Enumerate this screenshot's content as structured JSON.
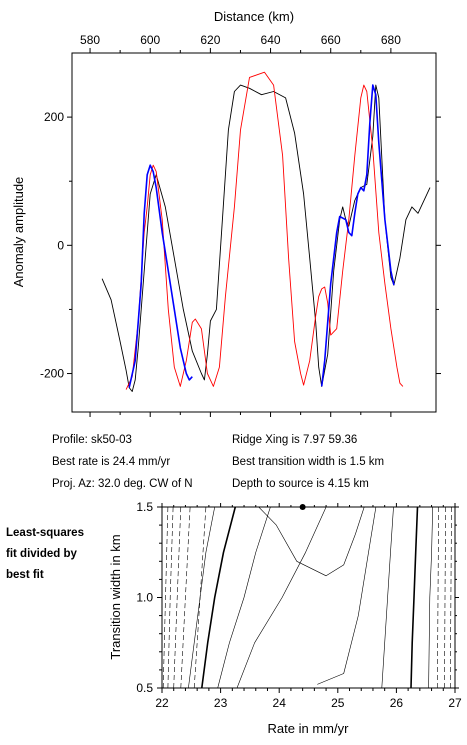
{
  "chart_data": [
    {
      "type": "line",
      "xlabel": "Distance (km)",
      "ylabel": "Anomaly amplitude",
      "xlim": [
        574,
        695
      ],
      "ylim": [
        -260,
        300
      ],
      "xticks": [
        580,
        600,
        620,
        640,
        660,
        680
      ],
      "yticks": [
        -200,
        0,
        200
      ],
      "x_axis_position": "top",
      "grid": false,
      "colors": {
        "observed": "#000000",
        "model": "#ff0000",
        "fit": "#0000ff"
      },
      "series": [
        {
          "key": "observed",
          "color": "#000000",
          "points": [
            [
              584,
              -52
            ],
            [
              587,
              -85
            ],
            [
              590,
              -150
            ],
            [
              592,
              -195
            ],
            [
              593,
              -222
            ],
            [
              594,
              -228
            ],
            [
              595,
              -210
            ],
            [
              596,
              -160
            ],
            [
              598,
              -40
            ],
            [
              600,
              80
            ],
            [
              602,
              110
            ],
            [
              605,
              60
            ],
            [
              608,
              -20
            ],
            [
              611,
              -100
            ],
            [
              614,
              -165
            ],
            [
              617,
              -200
            ],
            [
              618,
              -210
            ],
            [
              619,
              -170
            ],
            [
              620,
              -118
            ],
            [
              622,
              -100
            ],
            [
              624,
              40
            ],
            [
              626,
              180
            ],
            [
              628,
              240
            ],
            [
              630,
              250
            ],
            [
              633,
              245
            ],
            [
              637,
              235
            ],
            [
              641,
              240
            ],
            [
              645,
              230
            ],
            [
              648,
              175
            ],
            [
              651,
              80
            ],
            [
              653,
              -20
            ],
            [
              655,
              -120
            ],
            [
              656,
              -190
            ],
            [
              657,
              -220
            ],
            [
              659,
              -170
            ],
            [
              661,
              -40
            ],
            [
              663,
              40
            ],
            [
              664,
              60
            ],
            [
              665,
              40
            ],
            [
              666,
              30
            ],
            [
              668,
              70
            ],
            [
              670,
              90
            ],
            [
              672,
              95
            ],
            [
              674,
              170
            ],
            [
              675,
              250
            ],
            [
              676,
              230
            ],
            [
              678,
              40
            ],
            [
              680,
              -50
            ],
            [
              681,
              -62
            ],
            [
              683,
              -20
            ],
            [
              685,
              40
            ],
            [
              687,
              60
            ],
            [
              689,
              50
            ],
            [
              691,
              70
            ],
            [
              693,
              90
            ]
          ]
        },
        {
          "key": "model",
          "color": "#ff0000",
          "points": [
            [
              592,
              -225
            ],
            [
              594,
              -205
            ],
            [
              596,
              -120
            ],
            [
              598,
              20
            ],
            [
              599,
              60
            ],
            [
              600,
              110
            ],
            [
              601,
              125
            ],
            [
              602,
              115
            ],
            [
              604,
              40
            ],
            [
              606,
              -100
            ],
            [
              608,
              -190
            ],
            [
              610,
              -220
            ],
            [
              612,
              -180
            ],
            [
              614,
              -120
            ],
            [
              615,
              -115
            ],
            [
              617,
              -130
            ],
            [
              619,
              -200
            ],
            [
              621,
              -220
            ],
            [
              623,
              -190
            ],
            [
              625,
              -80
            ],
            [
              628,
              60
            ],
            [
              630,
              180
            ],
            [
              633,
              262
            ],
            [
              638,
              270
            ],
            [
              641,
              250
            ],
            [
              644,
              140
            ],
            [
              646,
              -20
            ],
            [
              648,
              -150
            ],
            [
              650,
              -200
            ],
            [
              651,
              -218
            ],
            [
              653,
              -180
            ],
            [
              655,
              -110
            ],
            [
              656,
              -80
            ],
            [
              657,
              -68
            ],
            [
              658,
              -65
            ],
            [
              659,
              -90
            ],
            [
              660,
              -140
            ],
            [
              662,
              -130
            ],
            [
              664,
              -40
            ],
            [
              666,
              40
            ],
            [
              668,
              140
            ],
            [
              670,
              230
            ],
            [
              671,
              250
            ],
            [
              672,
              240
            ],
            [
              674,
              150
            ],
            [
              676,
              20
            ],
            [
              678,
              -60
            ],
            [
              680,
              -130
            ],
            [
              682,
              -190
            ],
            [
              683,
              -215
            ],
            [
              684,
              -220
            ]
          ]
        },
        {
          "key": "fit",
          "color": "#0000ff",
          "points": [
            [
              593,
              -222
            ],
            [
              595,
              -180
            ],
            [
              597,
              -60
            ],
            [
              598,
              50
            ],
            [
              599,
              110
            ],
            [
              600,
              125
            ],
            [
              601,
              115
            ],
            [
              602,
              90
            ],
            [
              604,
              20
            ],
            [
              606,
              -40
            ],
            [
              608,
              -100
            ],
            [
              610,
              -160
            ],
            [
              612,
              -200
            ],
            [
              613,
              -210
            ],
            [
              614,
              -205
            ],
            [
              657,
              -220
            ],
            [
              658,
              -180
            ],
            [
              660,
              -60
            ],
            [
              662,
              20
            ],
            [
              663,
              45
            ],
            [
              665,
              40
            ],
            [
              666,
              20
            ],
            [
              667,
              15
            ],
            [
              668,
              50
            ],
            [
              669,
              80
            ],
            [
              670,
              90
            ],
            [
              671,
              85
            ],
            [
              672,
              110
            ],
            [
              673,
              190
            ],
            [
              674,
              250
            ],
            [
              675,
              235
            ],
            [
              676,
              160
            ],
            [
              678,
              40
            ],
            [
              680,
              -40
            ],
            [
              681,
              -62
            ]
          ]
        }
      ]
    },
    {
      "type": "contour",
      "xlabel": "Rate in mm/yr",
      "ylabel": "Transition width in km",
      "xlim": [
        22,
        27
      ],
      "ylim": [
        0.5,
        1.5
      ],
      "xticks": [
        22,
        23,
        24,
        25,
        26,
        27
      ],
      "yticks": [
        0.5,
        1.0,
        1.5
      ],
      "xtick_labels": [
        "22",
        "23",
        "24",
        "25",
        "26",
        "27"
      ],
      "ytick_labels": [
        "0.5",
        "1.0",
        "1.5"
      ],
      "best_fit": {
        "rate": 24.4,
        "width": 1.5
      },
      "contours": [
        {
          "style": "solid",
          "points": [
            [
              23.28,
              0.5
            ],
            [
              23.58,
              0.75
            ],
            [
              24.05,
              1.0
            ],
            [
              24.45,
              1.25
            ],
            [
              24.8,
              1.5
            ]
          ]
        },
        {
          "style": "solid",
          "points": [
            [
              24.65,
              0.52
            ],
            [
              25.1,
              0.58
            ],
            [
              25.35,
              0.9
            ],
            [
              25.55,
              1.3
            ],
            [
              25.65,
              1.5
            ]
          ]
        },
        {
          "style": "solid",
          "points": [
            [
              23.65,
              1.5
            ],
            [
              23.95,
              1.4
            ],
            [
              24.3,
              1.2
            ],
            [
              24.8,
              1.12
            ],
            [
              25.1,
              1.18
            ],
            [
              25.3,
              1.35
            ],
            [
              25.45,
              1.5
            ]
          ]
        },
        {
          "style": "solid",
          "points": [
            [
              22.95,
              0.5
            ],
            [
              23.15,
              0.75
            ],
            [
              23.4,
              1.0
            ],
            [
              23.6,
              1.25
            ],
            [
              23.85,
              1.5
            ]
          ]
        },
        {
          "style": "solid",
          "points": [
            [
              25.75,
              0.5
            ],
            [
              25.8,
              0.75
            ],
            [
              25.85,
              1.0
            ],
            [
              25.9,
              1.25
            ],
            [
              25.95,
              1.5
            ]
          ]
        },
        {
          "style": "bold",
          "points": [
            [
              22.68,
              0.5
            ],
            [
              22.78,
              0.75
            ],
            [
              22.9,
              1.0
            ],
            [
              23.05,
              1.25
            ],
            [
              23.25,
              1.5
            ]
          ]
        },
        {
          "style": "bold",
          "points": [
            [
              26.25,
              0.5
            ],
            [
              26.27,
              0.75
            ],
            [
              26.3,
              1.0
            ],
            [
              26.33,
              1.25
            ],
            [
              26.36,
              1.5
            ]
          ]
        },
        {
          "style": "solid",
          "points": [
            [
              22.45,
              0.5
            ],
            [
              22.55,
              0.75
            ],
            [
              22.65,
              1.0
            ],
            [
              22.75,
              1.25
            ],
            [
              22.9,
              1.5
            ]
          ]
        },
        {
          "style": "solid",
          "points": [
            [
              26.55,
              0.5
            ],
            [
              26.56,
              0.75
            ],
            [
              26.57,
              1.0
            ],
            [
              26.6,
              1.25
            ],
            [
              26.62,
              1.5
            ]
          ]
        },
        {
          "style": "dashed",
          "points": [
            [
              22.02,
              0.5
            ],
            [
              22.06,
              1.0
            ],
            [
              22.1,
              1.5
            ]
          ]
        },
        {
          "style": "dashed",
          "points": [
            [
              22.1,
              0.5
            ],
            [
              22.14,
              1.0
            ],
            [
              22.19,
              1.5
            ]
          ]
        },
        {
          "style": "dashed",
          "points": [
            [
              22.2,
              0.5
            ],
            [
              22.26,
              1.0
            ],
            [
              22.32,
              1.5
            ]
          ]
        },
        {
          "style": "dashed",
          "points": [
            [
              22.32,
              0.5
            ],
            [
              22.4,
              1.0
            ],
            [
              22.48,
              1.5
            ]
          ]
        },
        {
          "style": "dashed",
          "points": [
            [
              22.55,
              0.5
            ],
            [
              22.65,
              1.0
            ],
            [
              22.75,
              1.5
            ]
          ]
        },
        {
          "style": "dashed",
          "points": [
            [
              26.7,
              0.5
            ],
            [
              26.71,
              1.0
            ],
            [
              26.72,
              1.5
            ]
          ]
        },
        {
          "style": "dashed",
          "points": [
            [
              26.82,
              0.5
            ],
            [
              26.83,
              1.0
            ],
            [
              26.84,
              1.5
            ]
          ]
        },
        {
          "style": "dashed",
          "points": [
            [
              26.92,
              0.5
            ],
            [
              26.93,
              1.0
            ],
            [
              26.94,
              1.5
            ]
          ]
        }
      ]
    }
  ],
  "info": {
    "profile": "Profile: sk50-03",
    "best_rate": "Best rate is 24.4 mm/yr",
    "proj_az": "Proj. Az: 32.0 deg. CW of N",
    "ridge_xing": "Ridge Xing is 7.97 59.36",
    "best_width": "Best transition width is 1.5 km",
    "depth": "Depth to source is   4.15 km"
  },
  "side_note": {
    "line1": "Least-squares",
    "line2": "fit divided by",
    "line3": "best fit"
  }
}
